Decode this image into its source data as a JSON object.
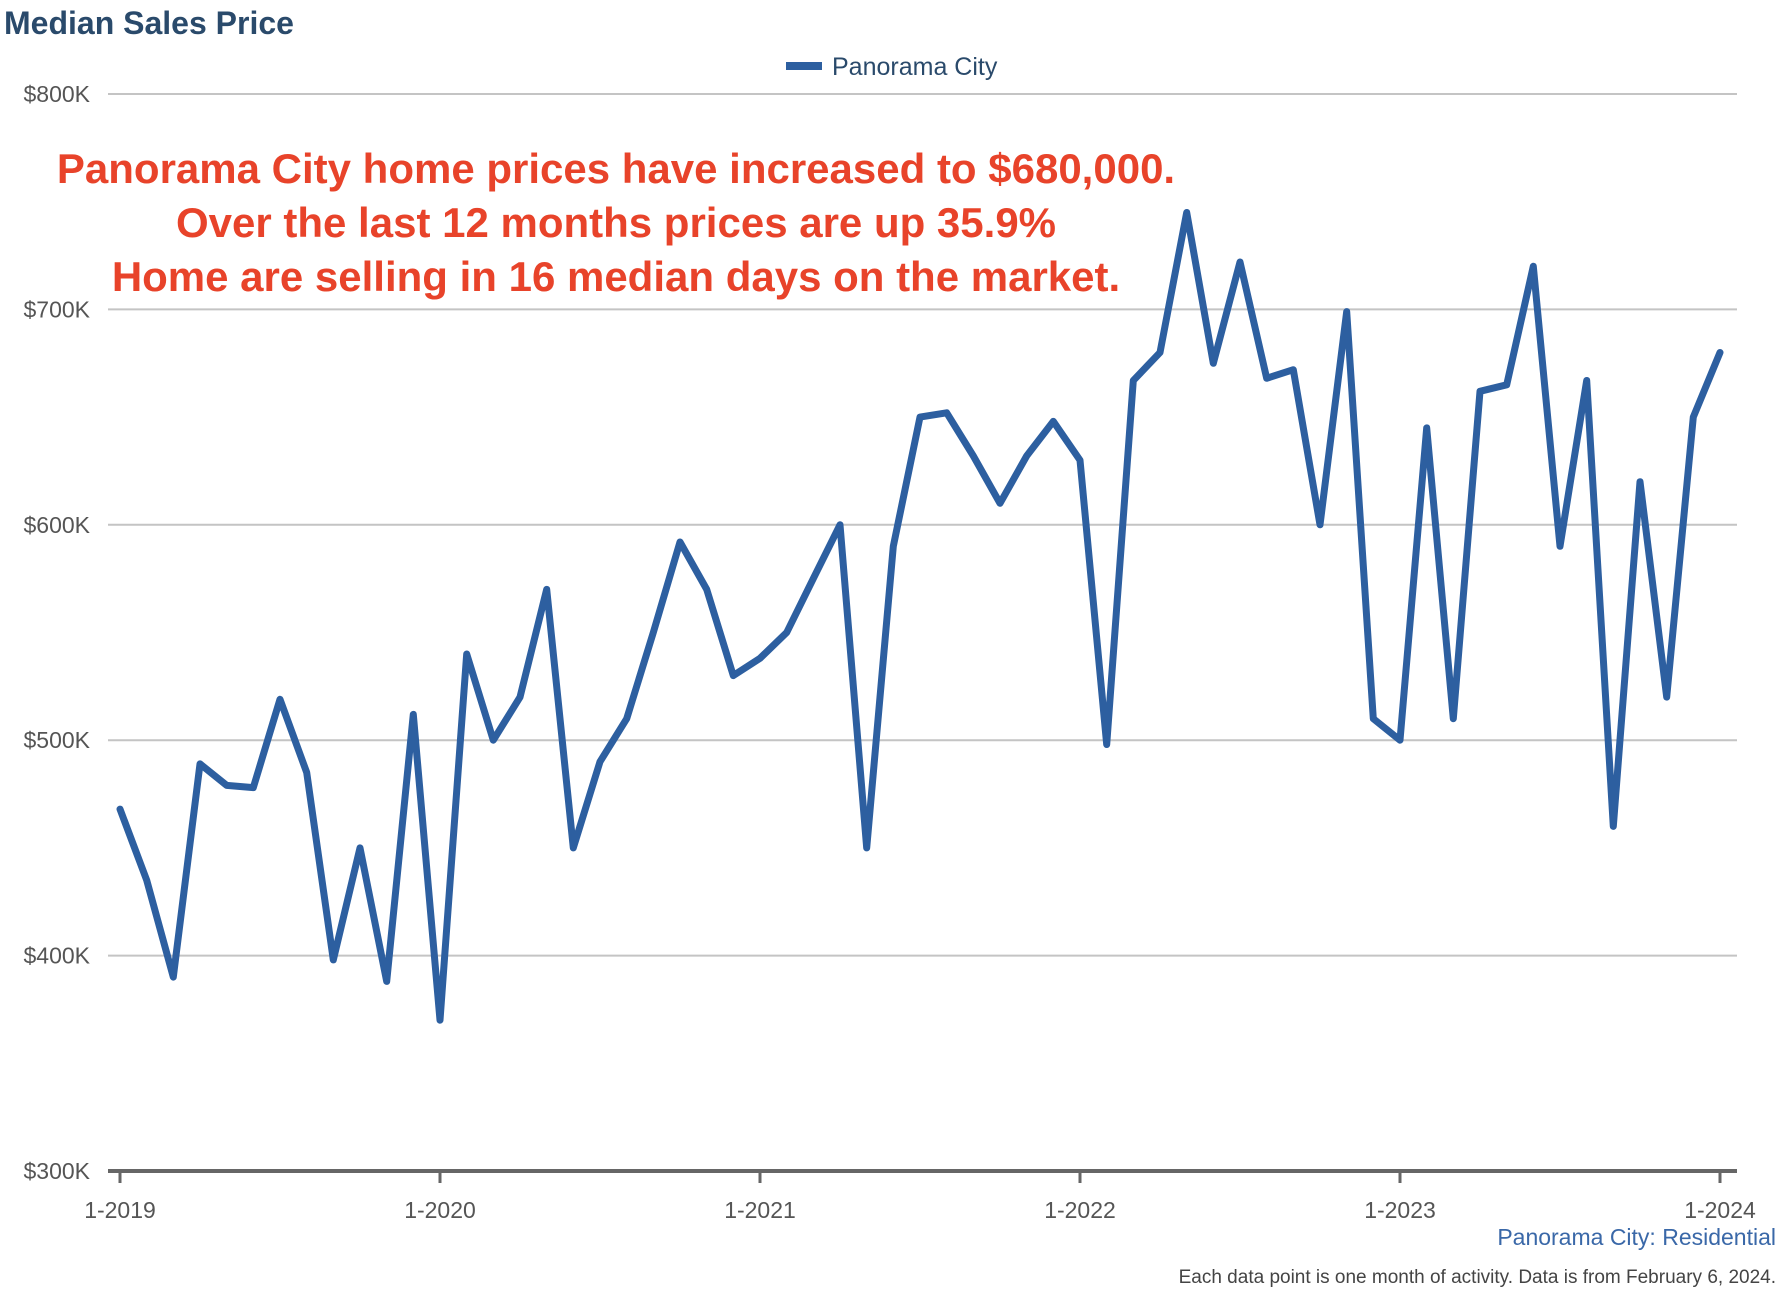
{
  "chart_data": {
    "type": "line",
    "title": "Median Sales Price",
    "legend": {
      "position": "top-center",
      "entries": [
        "Panorama City"
      ]
    },
    "series": [
      {
        "name": "Panorama City",
        "color": "#2d5fa0",
        "values": [
          468000,
          435000,
          390000,
          489000,
          479000,
          478000,
          519000,
          485000,
          398000,
          450000,
          388000,
          512000,
          370000,
          540000,
          500000,
          520000,
          570000,
          450000,
          490000,
          510000,
          550000,
          592000,
          570000,
          530000,
          538000,
          550000,
          575000,
          600000,
          450000,
          590000,
          650000,
          652000,
          632000,
          610000,
          632000,
          648000,
          630000,
          498000,
          667000,
          680000,
          745000,
          675000,
          722000,
          668000,
          672000,
          600000,
          699000,
          510000,
          500000,
          645000,
          510000,
          662000,
          665000,
          720000,
          590000,
          667000,
          460000,
          620000,
          520000,
          650000,
          680000
        ]
      }
    ],
    "x": [
      "1-2019",
      "2-2019",
      "3-2019",
      "4-2019",
      "5-2019",
      "6-2019",
      "7-2019",
      "8-2019",
      "9-2019",
      "10-2019",
      "11-2019",
      "12-2019",
      "1-2020",
      "2-2020",
      "3-2020",
      "4-2020",
      "5-2020",
      "6-2020",
      "7-2020",
      "8-2020",
      "9-2020",
      "10-2020",
      "11-2020",
      "12-2020",
      "1-2021",
      "2-2021",
      "3-2021",
      "4-2021",
      "5-2021",
      "6-2021",
      "7-2021",
      "8-2021",
      "9-2021",
      "10-2021",
      "11-2021",
      "12-2021",
      "1-2022",
      "2-2022",
      "3-2022",
      "4-2022",
      "5-2022",
      "6-2022",
      "7-2022",
      "8-2022",
      "9-2022",
      "10-2022",
      "11-2022",
      "12-2022",
      "1-2023",
      "2-2023",
      "3-2023",
      "4-2023",
      "5-2023",
      "6-2023",
      "7-2023",
      "8-2023",
      "9-2023",
      "10-2023",
      "11-2023",
      "12-2023",
      "1-2024"
    ],
    "x_tick_labels": [
      "1-2019",
      "1-2020",
      "1-2021",
      "1-2022",
      "1-2023",
      "1-2024"
    ],
    "y_tick_labels": [
      "$300K",
      "$400K",
      "$500K",
      "$600K",
      "$700K",
      "$800K"
    ],
    "y_tick_values": [
      300000,
      400000,
      500000,
      600000,
      700000,
      800000
    ],
    "ylim": [
      300000,
      800000
    ],
    "xlabel": "",
    "ylabel": "",
    "grid": "horizontal",
    "annotation": [
      "Panorama City home prices have increased to $680,000.",
      "Over the last 12 months prices are up 35.9%",
      "Home are selling in 16 median days on the market."
    ],
    "annotation_color": "#e8432a",
    "source_label": "Panorama City: Residential",
    "footnote": "Each data point is one month of activity. Data is from February 6, 2024."
  }
}
